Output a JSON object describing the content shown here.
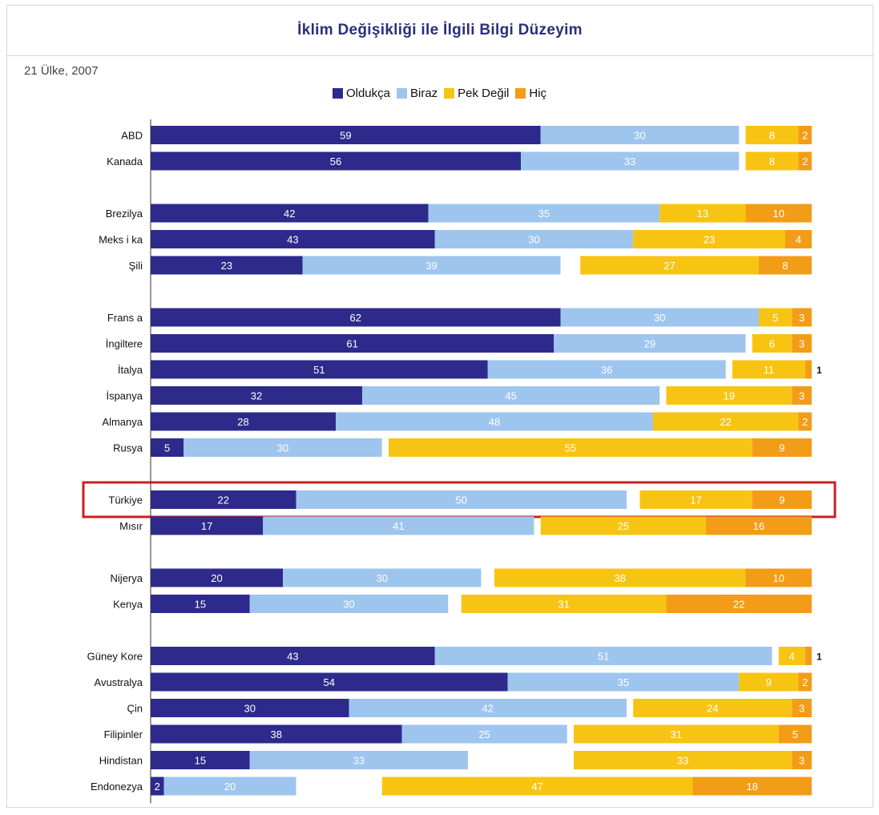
{
  "chart_data": {
    "type": "bar",
    "orientation": "horizontal",
    "stacked": true,
    "title": "İklim Değişikliği ile İlgili Bilgi Düzeyim",
    "subtitle": "21 Ülke, 2007",
    "legend_position": "top",
    "categories": [
      "ABD",
      "Kanada",
      "Brezilya",
      "Meksika",
      "Şili",
      "Fransa",
      "İngiltere",
      "İtalya",
      "İspanya",
      "Almanya",
      "Rusya",
      "Türkiye",
      "Mısır",
      "Nijerya",
      "Kenya",
      "Güney Kore",
      "Avustralya",
      "Çin",
      "Filipinler",
      "Hindistan",
      "Endonezya"
    ],
    "category_labels": [
      "ABD",
      "Kanada",
      "Brezilya",
      "Meks i ka",
      "Şili",
      "Frans a",
      "İngiltere",
      "İtalya",
      "İspanya",
      "Almanya",
      "Rusya",
      "Türkiye",
      "Mısır",
      "Nijerya",
      "Kenya",
      "Güney Kore",
      "Avustralya",
      "Çin",
      "Filipinler",
      "Hindistan",
      "Endonezya"
    ],
    "groups": [
      [
        0,
        1
      ],
      [
        2,
        3,
        4
      ],
      [
        5,
        6,
        7,
        8,
        9,
        10
      ],
      [
        11,
        12
      ],
      [
        13,
        14
      ],
      [
        15,
        16,
        17,
        18,
        19,
        20
      ]
    ],
    "highlighted": "Türkiye",
    "series": [
      {
        "name": "Oldukça",
        "color": "#2d2a8c",
        "values": [
          59,
          56,
          42,
          43,
          23,
          62,
          61,
          51,
          32,
          28,
          5,
          22,
          17,
          20,
          15,
          43,
          54,
          30,
          38,
          15,
          2
        ]
      },
      {
        "name": "Biraz",
        "color": "#9ec5ee",
        "values": [
          30,
          33,
          35,
          30,
          39,
          30,
          29,
          36,
          45,
          48,
          30,
          50,
          41,
          30,
          30,
          51,
          35,
          42,
          25,
          33,
          20
        ]
      },
      {
        "name": "Pek Değil",
        "color": "#f8c414",
        "values": [
          8,
          8,
          13,
          23,
          27,
          5,
          6,
          11,
          19,
          22,
          55,
          17,
          25,
          38,
          31,
          4,
          9,
          24,
          31,
          33,
          47
        ]
      },
      {
        "name": "Hiç",
        "color": "#f39c17",
        "values": [
          2,
          2,
          10,
          4,
          8,
          3,
          3,
          1,
          3,
          2,
          9,
          9,
          16,
          10,
          22,
          1,
          2,
          3,
          5,
          3,
          18
        ]
      }
    ]
  }
}
